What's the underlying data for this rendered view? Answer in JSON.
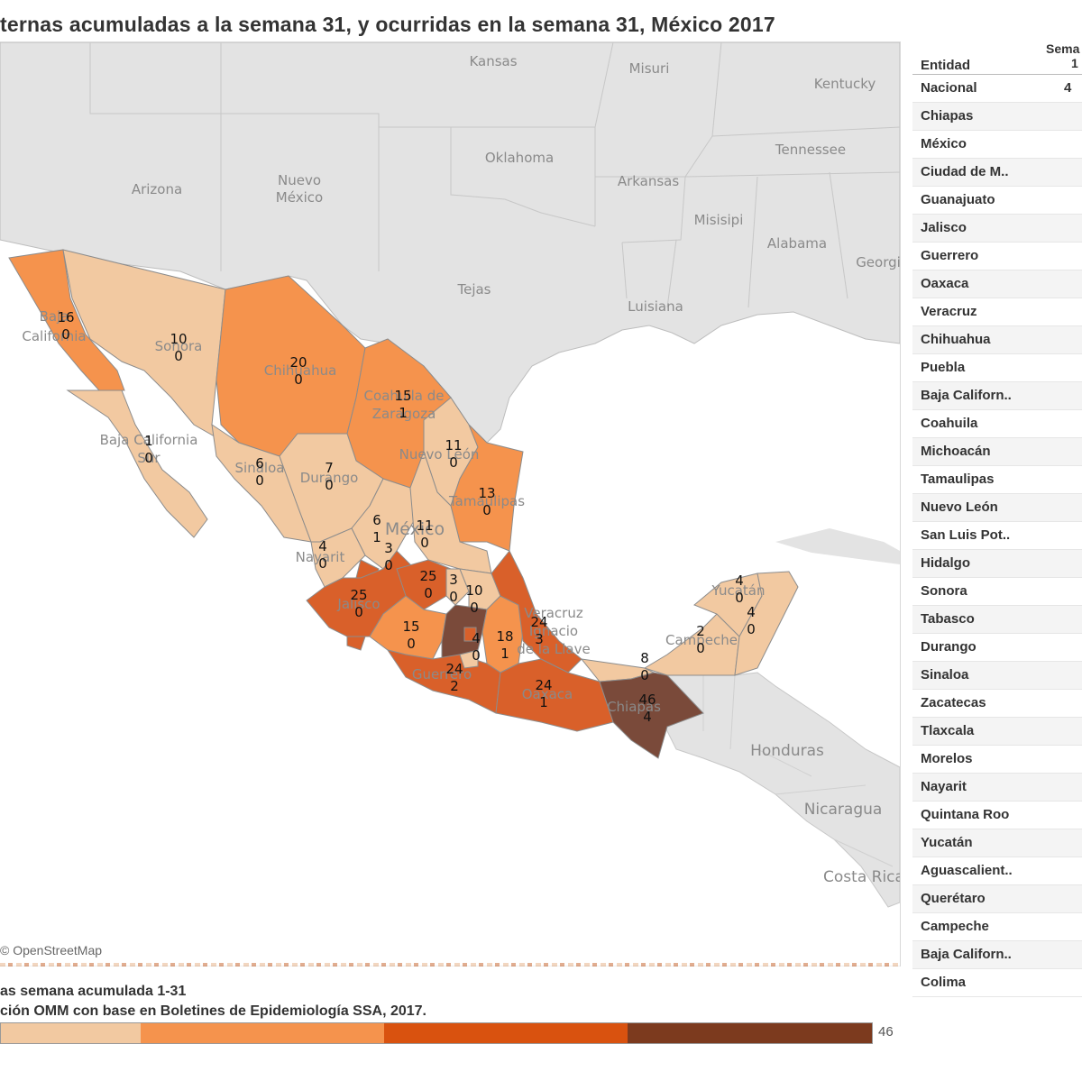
{
  "title": "ternas acumuladas a la semana 31, y ocurridas en la semana 31, México 2017",
  "attribution": "© OpenStreetMap",
  "colors": {
    "ocean": "#ffffff",
    "land": "#e3e3e3",
    "c1": "#f2c9a1",
    "c2": "#f5934d",
    "c3": "#d9602a",
    "c4": "#7a4a3a"
  },
  "table": {
    "header_entity": "Entidad",
    "header_week_line1": "Sema",
    "header_week_line2": "1",
    "nacional_value": "4",
    "rows": [
      "Nacional",
      "Chiapas",
      "México",
      "Ciudad de M..",
      "Guanajuato",
      "Jalisco",
      "Guerrero",
      "Oaxaca",
      "Veracruz",
      "Chihuahua",
      "Puebla",
      "Baja Californ..",
      "Coahuila",
      "Michoacán",
      "Tamaulipas",
      "Nuevo León",
      "San Luis Pot..",
      "Hidalgo",
      "Sonora",
      "Tabasco",
      "Durango",
      "Sinaloa",
      "Zacatecas",
      "Tlaxcala",
      "Morelos",
      "Nayarit",
      "Quintana Roo",
      "Yucatán",
      "Aguascalient..",
      "Querétaro",
      "Campeche",
      "Baja Californ..",
      "Colima"
    ]
  },
  "map_labels": {
    "us": [
      "Kansas",
      "Misuri",
      "Kentucky",
      "Oklahoma",
      "Tennessee",
      "Arizona",
      "Nuevo México",
      "Arkansas",
      "Misisipi",
      "Alabama",
      "Georgi",
      "Tejas",
      "Luisiana"
    ],
    "ca": [
      "Honduras",
      "Nicaragua",
      "Costa Rica"
    ],
    "mx": [
      "Baja California",
      "Sonora",
      "Chihuahua",
      "Coahuila de Zaragoza",
      "Nuevo León",
      "Tamaulipas",
      "Durango",
      "Sinaloa",
      "Baja California Sur",
      "Nayarit",
      "Jalisco",
      "Guerrero",
      "Oaxaca",
      "Chiapas",
      "Veracruz Ignacio de la Llave",
      "Yucatán",
      "Campeche",
      "México"
    ]
  },
  "states": [
    {
      "name": "Baja California",
      "acum": "16",
      "sem": "0",
      "level": 2
    },
    {
      "name": "Sonora",
      "acum": "10",
      "sem": "0",
      "level": 1
    },
    {
      "name": "Chihuahua",
      "acum": "20",
      "sem": "0",
      "level": 2
    },
    {
      "name": "Coahuila",
      "acum": "15",
      "sem": "1",
      "level": 2
    },
    {
      "name": "Baja California Sur",
      "acum": "1",
      "sem": "0",
      "level": 1
    },
    {
      "name": "Nuevo León",
      "acum": "11",
      "sem": "0",
      "level": 1
    },
    {
      "name": "Sinaloa",
      "acum": "6",
      "sem": "0",
      "level": 1
    },
    {
      "name": "Durango",
      "acum": "7",
      "sem": "0",
      "level": 1
    },
    {
      "name": "Tamaulipas",
      "acum": "13",
      "sem": "0",
      "level": 2
    },
    {
      "name": "Zacatecas",
      "acum": "6",
      "sem": "1",
      "level": 1
    },
    {
      "name": "San Luis Potosí",
      "acum": "11",
      "sem": "0",
      "level": 1
    },
    {
      "name": "Nayarit",
      "acum": "4",
      "sem": "0",
      "level": 1
    },
    {
      "name": "Aguascalientes",
      "acum": "3",
      "sem": "0",
      "level": 1
    },
    {
      "name": "Guanajuato",
      "acum": "25",
      "sem": "0",
      "level": 3
    },
    {
      "name": "Querétaro",
      "acum": "3",
      "sem": "0",
      "level": 1
    },
    {
      "name": "Hidalgo",
      "acum": "10",
      "sem": "0",
      "level": 1
    },
    {
      "name": "Jalisco",
      "acum": "25",
      "sem": "0",
      "level": 3
    },
    {
      "name": "Michoacán",
      "acum": "15",
      "sem": "0",
      "level": 2
    },
    {
      "name": "México",
      "acum": "4",
      "sem": "0",
      "level": 4
    },
    {
      "name": "Veracruz",
      "acum": "24",
      "sem": "3",
      "level": 3
    },
    {
      "name": "Puebla",
      "acum": "18",
      "sem": "1",
      "level": 2
    },
    {
      "name": "Guerrero",
      "acum": "24",
      "sem": "2",
      "level": 3
    },
    {
      "name": "Oaxaca",
      "acum": "24",
      "sem": "1",
      "level": 3
    },
    {
      "name": "Chiapas",
      "acum": "46",
      "sem": "4",
      "level": 4
    },
    {
      "name": "Tabasco",
      "acum": "8",
      "sem": "0",
      "level": 1
    },
    {
      "name": "Campeche",
      "acum": "2",
      "sem": "0",
      "level": 1
    },
    {
      "name": "Yucatán",
      "acum": "4",
      "sem": "0",
      "level": 1
    },
    {
      "name": "Quintana Roo",
      "acum": "4",
      "sem": "0",
      "level": 1
    }
  ],
  "legend": {
    "title": "as semana acumulada 1-31",
    "source": "ción OMM con base en Boletines de Epidemiología SSA, 2017.",
    "max": "46",
    "segments": [
      {
        "color": "#f2c9a1",
        "share": 0.16
      },
      {
        "color": "#f5934d",
        "share": 0.28
      },
      {
        "color": "#d9520f",
        "share": 0.28
      },
      {
        "color": "#7c3a1e",
        "share": 0.28
      }
    ]
  }
}
